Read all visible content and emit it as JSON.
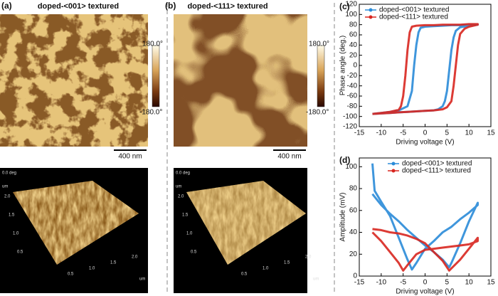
{
  "panels": [
    {
      "label": "(a)",
      "title": "doped-<001> textured",
      "colorbar": {
        "max": "180.0°",
        "min": "-180.0°"
      },
      "scale_bar": "400 nm",
      "surface": {
        "z_label": "0.0 deg",
        "unit": "um",
        "y_ticks": [
          "2.0",
          "1.5",
          "1.0",
          "0.5"
        ],
        "x_ticks": [
          "0.5",
          "1.0",
          "1.5",
          "2.0"
        ]
      }
    },
    {
      "label": "(b)",
      "title": "doped-<111> textured",
      "colorbar": {
        "max": "180.0°",
        "min": "-180.0°"
      },
      "scale_bar": "400 nm",
      "surface": {
        "z_label": "0.0 deg",
        "unit": "um",
        "y_ticks": [
          "2.0",
          "1.5",
          "1.0",
          "0.5"
        ],
        "x_ticks": [
          "0.5",
          "1.0",
          "1.5",
          "2.0"
        ]
      }
    }
  ],
  "chart_data": [
    {
      "type": "line",
      "label": "(c)",
      "x_label": "Driving voltage (V)",
      "y_label": "Phase angle (deg.)",
      "xlim": [
        -15,
        15
      ],
      "xticks": [
        -15,
        -10,
        -5,
        0,
        5,
        10,
        15
      ],
      "ylim": [
        -120,
        120
      ],
      "yticks": [
        -120,
        -100,
        -80,
        -60,
        -40,
        -20,
        0,
        20,
        40,
        60,
        80,
        100,
        120
      ],
      "legend": "upper left",
      "series": [
        {
          "name": "doped-<001> textured",
          "color": "#2a8bd8",
          "x": [
            -12,
            -10,
            -8,
            -6,
            -4,
            -2,
            0,
            2,
            3,
            4,
            4.5,
            5,
            5.5,
            6,
            6.5,
            7,
            8,
            10,
            12,
            12,
            10,
            8,
            6,
            4,
            2,
            0,
            -1,
            -1.5,
            -2,
            -2.5,
            -3,
            -4,
            -6,
            -8,
            -10,
            -12
          ],
          "values": [
            -95,
            -94,
            -93,
            -92,
            -91,
            -90,
            -89,
            -88,
            -86,
            -80,
            -70,
            -50,
            -10,
            30,
            55,
            68,
            75,
            78,
            80,
            80,
            80,
            79,
            79,
            78,
            77,
            76,
            74,
            65,
            40,
            0,
            -50,
            -80,
            -88,
            -91,
            -93,
            -95
          ]
        },
        {
          "name": "doped-<111> textured",
          "color": "#d8261f",
          "x": [
            -12,
            -10,
            -8,
            -6,
            -4,
            -2,
            0,
            2,
            4,
            5,
            6,
            6.5,
            7,
            7.5,
            8,
            9,
            10,
            12,
            12,
            10,
            8,
            6,
            4,
            2,
            0,
            -2,
            -3,
            -3.5,
            -4,
            -4.5,
            -5,
            -5.5,
            -6,
            -8,
            -10,
            -12
          ],
          "values": [
            -95,
            -94,
            -93,
            -92,
            -91,
            -90,
            -89,
            -88,
            -86,
            -82,
            -70,
            -40,
            0,
            40,
            62,
            72,
            76,
            80,
            81,
            81,
            80,
            80,
            80,
            79,
            79,
            78,
            76,
            65,
            30,
            -20,
            -60,
            -80,
            -87,
            -91,
            -93,
            -95
          ]
        }
      ]
    },
    {
      "type": "line",
      "label": "(d)",
      "x_label": "Driving voltage (V)",
      "y_label": "Amplitude (mV)",
      "xlim": [
        -15,
        15
      ],
      "xticks": [
        -15,
        -10,
        -5,
        0,
        5,
        10,
        15
      ],
      "ylim": [
        0,
        108
      ],
      "yticks": [
        0,
        20,
        40,
        60,
        80,
        100
      ],
      "legend": "upper center",
      "series": [
        {
          "name": "doped-<001> textured",
          "color": "#2a8bd8",
          "x": [
            -12,
            -11.5,
            -10,
            -8,
            -6,
            -4,
            -3,
            -2,
            0,
            2,
            4,
            6,
            8,
            10,
            12,
            12,
            10,
            8,
            6,
            5.5,
            4,
            2,
            0,
            -2,
            -4,
            -6,
            -8,
            -10,
            -12
          ],
          "values": [
            103,
            78,
            68,
            55,
            35,
            15,
            6,
            12,
            25,
            32,
            40,
            45,
            52,
            58,
            65,
            67,
            50,
            30,
            12,
            8,
            15,
            22,
            28,
            35,
            42,
            50,
            57,
            65,
            75
          ]
        },
        {
          "name": "doped-<111> textured",
          "color": "#d8261f",
          "x": [
            -12,
            -10,
            -8,
            -6,
            -5,
            -4,
            -2,
            0,
            2,
            4,
            6,
            8,
            10,
            12,
            12,
            10,
            8,
            6,
            5.5,
            5,
            4,
            2,
            0,
            -2,
            -4,
            -6,
            -8,
            -10,
            -12
          ],
          "values": [
            40,
            32,
            22,
            12,
            5,
            10,
            20,
            24,
            25,
            26,
            27,
            28,
            29,
            32,
            35,
            25,
            15,
            7,
            5,
            8,
            14,
            22,
            30,
            34,
            37,
            39,
            40,
            42,
            43
          ]
        }
      ]
    }
  ]
}
